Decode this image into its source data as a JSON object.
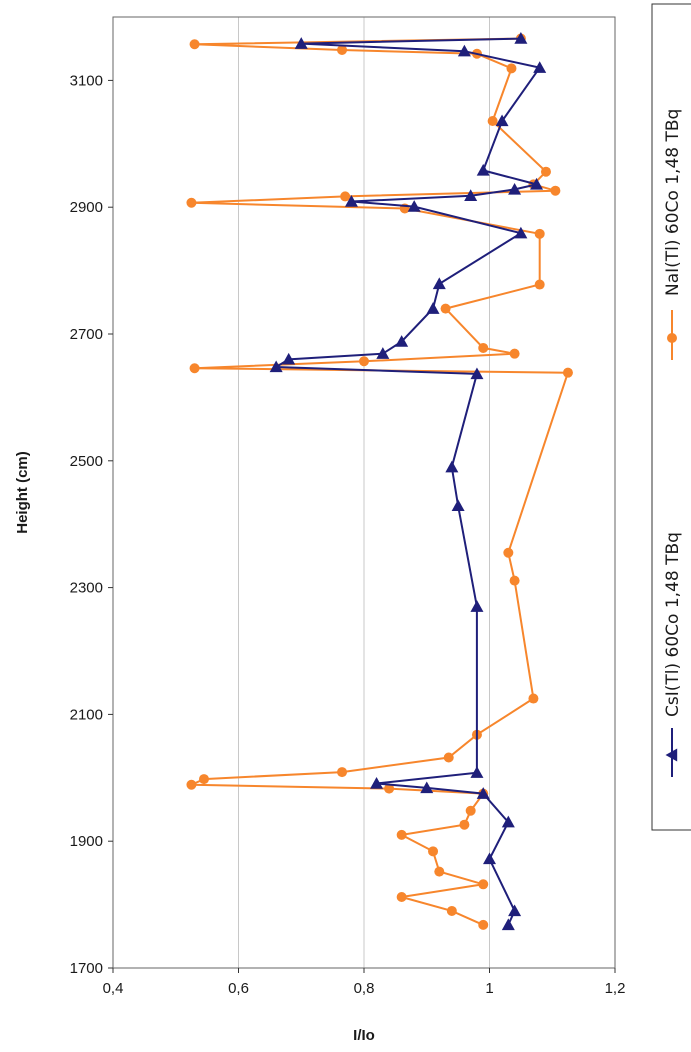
{
  "chart_data": {
    "type": "scatter",
    "xlabel": "I/Io",
    "ylabel": "Height  (cm)",
    "xlim": [
      0.4,
      1.2
    ],
    "ylim": [
      1700,
      3200
    ],
    "x_ticks": [
      0.4,
      0.6,
      0.8,
      1.0,
      1.2
    ],
    "x_tick_labels": [
      "0,4",
      "0,6",
      "0,8",
      "1",
      "1,2"
    ],
    "y_ticks": [
      1700,
      1900,
      2100,
      2300,
      2500,
      2700,
      2900,
      3100
    ],
    "y_tick_labels": [
      "1700",
      "1900",
      "2100",
      "2300",
      "2500",
      "2700",
      "2900",
      "3100"
    ],
    "grid": "vertical",
    "legend_position": "right",
    "series": [
      {
        "name": "NaI(Tl) 60Co 1,48 TBq",
        "color": "#f7862c",
        "marker": "circle",
        "points": [
          [
            0.99,
            1768
          ],
          [
            0.94,
            1790
          ],
          [
            0.86,
            1812
          ],
          [
            0.99,
            1832
          ],
          [
            0.92,
            1852
          ],
          [
            0.91,
            1884
          ],
          [
            0.86,
            1910
          ],
          [
            0.96,
            1926
          ],
          [
            0.97,
            1948
          ],
          [
            0.99,
            1975
          ],
          [
            0.84,
            1983
          ],
          [
            0.525,
            1989
          ],
          [
            0.545,
            1998
          ],
          [
            0.765,
            2009
          ],
          [
            0.935,
            2032
          ],
          [
            0.98,
            2068
          ],
          [
            1.07,
            2125
          ],
          [
            1.04,
            2311
          ],
          [
            1.03,
            2355
          ],
          [
            1.125,
            2639
          ],
          [
            0.53,
            2646
          ],
          [
            0.8,
            2657
          ],
          [
            1.04,
            2669
          ],
          [
            0.99,
            2678
          ],
          [
            0.93,
            2740
          ],
          [
            1.08,
            2778
          ],
          [
            1.08,
            2858
          ],
          [
            0.865,
            2898
          ],
          [
            0.525,
            2907
          ],
          [
            0.77,
            2917
          ],
          [
            1.105,
            2926
          ],
          [
            1.07,
            2936
          ],
          [
            1.09,
            2956
          ],
          [
            1.005,
            3036
          ],
          [
            1.035,
            3119
          ],
          [
            0.98,
            3142
          ],
          [
            0.765,
            3148
          ],
          [
            0.53,
            3157
          ],
          [
            1.05,
            3166
          ]
        ]
      },
      {
        "name": "CsI(Tl) 60Co 1,48 TBq",
        "color": "#1f1f7a",
        "marker": "triangle",
        "points": [
          [
            1.03,
            1768
          ],
          [
            1.04,
            1790
          ],
          [
            1.0,
            1872
          ],
          [
            1.03,
            1930
          ],
          [
            0.99,
            1975
          ],
          [
            0.9,
            1984
          ],
          [
            0.82,
            1991
          ],
          [
            0.98,
            2008
          ],
          [
            0.98,
            2270
          ],
          [
            0.95,
            2429
          ],
          [
            0.94,
            2490
          ],
          [
            0.98,
            2637
          ],
          [
            0.66,
            2648
          ],
          [
            0.68,
            2660
          ],
          [
            0.83,
            2669
          ],
          [
            0.86,
            2688
          ],
          [
            0.91,
            2740
          ],
          [
            0.92,
            2779
          ],
          [
            1.05,
            2859
          ],
          [
            0.88,
            2901
          ],
          [
            0.78,
            2909
          ],
          [
            0.97,
            2918
          ],
          [
            1.04,
            2928
          ],
          [
            1.075,
            2936
          ],
          [
            0.99,
            2958
          ],
          [
            1.02,
            3036
          ],
          [
            1.08,
            3120
          ],
          [
            0.96,
            3146
          ],
          [
            0.7,
            3158
          ],
          [
            1.05,
            3166
          ]
        ]
      }
    ]
  }
}
